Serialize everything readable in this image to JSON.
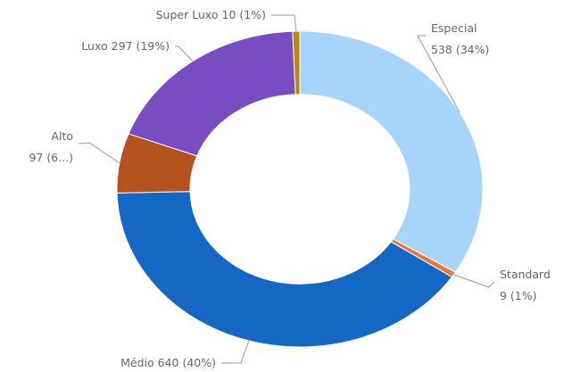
{
  "chart_data": {
    "type": "donut",
    "categories": [
      "Especial",
      "Standard",
      "Médio",
      "Alto",
      "Luxo",
      "Super Luxo"
    ],
    "values": [
      538,
      9,
      640,
      97,
      297,
      10
    ],
    "value_labels": [
      "538 (34%)",
      "9 (1%)",
      "640 (40%)",
      "97 (6...)",
      "297 (19%)",
      "10 (1%)"
    ],
    "colors": [
      "#a6d4fb",
      "#e8773a",
      "#1467c2",
      "#b4531f",
      "#7a4cc2",
      "#b8860b"
    ]
  }
}
